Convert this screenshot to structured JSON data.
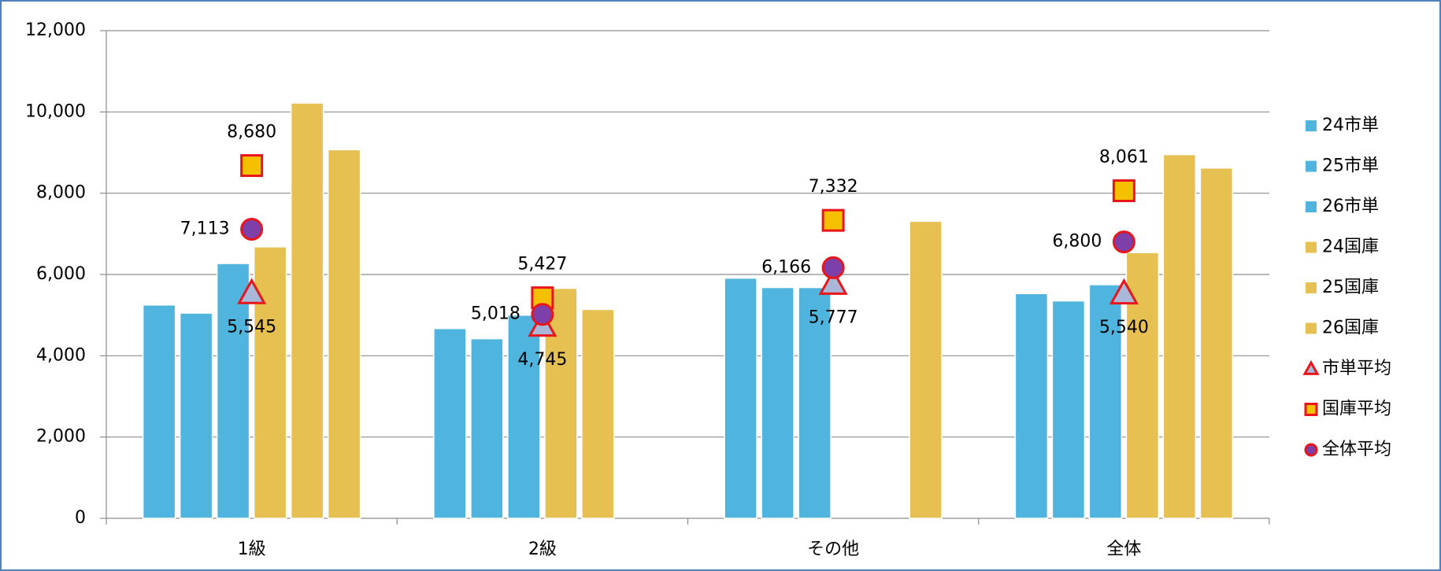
{
  "chart_data": {
    "type": "bar",
    "categories": [
      "1級",
      "2級",
      "その他",
      "全体"
    ],
    "ylim": [
      0,
      12000
    ],
    "yticks": [
      0,
      {
        "value": 2000,
        "label": "2,000"
      },
      {
        "value": 4000,
        "label": "4,000"
      },
      {
        "value": 6000,
        "label": "6,000"
      },
      {
        "value": 8000,
        "label": "8,000"
      },
      {
        "value": 10000,
        "label": "10,000"
      },
      {
        "value": 12000,
        "label": "12,000"
      }
    ],
    "grid": true,
    "legend": "right",
    "series": [
      {
        "name": "24市単",
        "color": "#4fb5de",
        "values": [
          5250,
          4670,
          5910,
          5530
        ]
      },
      {
        "name": "25市単",
        "color": "#4fb5de",
        "values": [
          5050,
          4420,
          5680,
          5350
        ]
      },
      {
        "name": "26市単",
        "color": "#4fb5de",
        "values": [
          6270,
          5000,
          5680,
          5750
        ]
      },
      {
        "name": "24国庫",
        "color": "#e6c050",
        "values": [
          6680,
          5660,
          null,
          6540
        ]
      },
      {
        "name": "25国庫",
        "color": "#e6c050",
        "values": [
          10220,
          5140,
          null,
          8950
        ]
      },
      {
        "name": "26国庫",
        "color": "#e6c050",
        "values": [
          9070,
          null,
          7310,
          8620
        ]
      },
      {
        "name": "市単平均",
        "type": "marker",
        "marker": "triangle",
        "color": "#a9b8d8",
        "edge": "#e8151b",
        "values": [
          5545,
          4745,
          5777,
          5540
        ],
        "value_labels": [
          "5,545",
          "4,745",
          "5,777",
          "5,540"
        ]
      },
      {
        "name": "国庫平均",
        "type": "marker",
        "marker": "square",
        "color": "#f5c000",
        "edge": "#e8151b",
        "values": [
          8680,
          5427,
          7332,
          8061
        ],
        "value_labels": [
          "8,680",
          "5,427",
          "7,332",
          "8,061"
        ]
      },
      {
        "name": "全体平均",
        "type": "marker",
        "marker": "circle",
        "color": "#7d3fa8",
        "edge": "#e8151b",
        "values": [
          7113,
          5018,
          6166,
          6800
        ],
        "value_labels": [
          "7,113",
          "5,018",
          "6,166",
          "6,800"
        ]
      }
    ]
  }
}
